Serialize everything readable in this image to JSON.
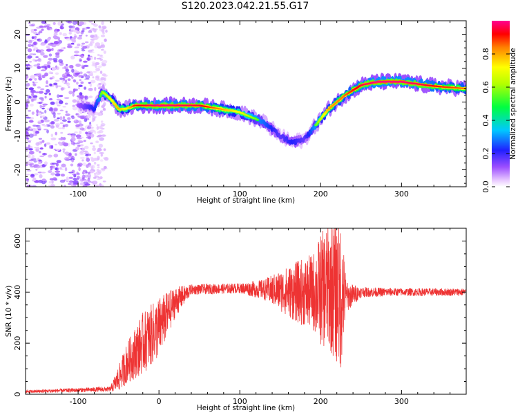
{
  "figure": {
    "title": "S120.2023.042.21.55.G17"
  },
  "chart_data": [
    {
      "type": "heatmap",
      "title": "S120.2023.042.21.55.G17",
      "xlabel": "Height of straight line (km)",
      "ylabel": "Frequency (Hz)",
      "xlim": [
        -165,
        380
      ],
      "ylim": [
        -25,
        24
      ],
      "x_ticks": [
        -100,
        0,
        100,
        200,
        300
      ],
      "y_ticks": [
        -20,
        -10,
        0,
        10,
        20
      ],
      "colorbar": {
        "label": "Normalized spectral amplitude",
        "range": [
          0.0,
          1.0
        ],
        "ticks": [
          "0.0",
          "0.2",
          "0.4",
          "0.6",
          "0.8"
        ],
        "colormap": "rainbow (white-purple-blue-cyan-green-yellow-red-magenta)"
      },
      "ridge": {
        "x": [
          -100,
          -80,
          -70,
          -60,
          -50,
          -40,
          -30,
          0,
          50,
          100,
          130,
          150,
          165,
          180,
          190,
          210,
          230,
          250,
          270,
          300,
          330,
          350,
          380
        ],
        "y": [
          -1,
          -2,
          3,
          1,
          -2,
          -2,
          -1,
          -1,
          -1,
          -3,
          -6,
          -10,
          -12,
          -11,
          -8,
          -2,
          2,
          5,
          6,
          6,
          5,
          4.5,
          4
        ],
        "amplitude": [
          0.2,
          0.4,
          0.6,
          0.7,
          0.8,
          0.7,
          0.9,
          1.0,
          0.95,
          0.7,
          0.5,
          0.3,
          0.4,
          0.3,
          0.5,
          0.8,
          0.85,
          0.95,
          1.0,
          1.0,
          0.95,
          0.9,
          0.85
        ]
      },
      "noise_region_x": [
        -165,
        -85
      ]
    },
    {
      "type": "line",
      "title": "",
      "xlabel": "Height of straight line (km)",
      "ylabel": "SNR (10 * v/v)",
      "xlim": [
        -165,
        380
      ],
      "ylim": [
        0,
        650
      ],
      "x_ticks": [
        -100,
        0,
        100,
        200,
        300
      ],
      "y_ticks": [
        0,
        200,
        400,
        600
      ],
      "color": "#ee3333",
      "envelope": {
        "x": [
          -165,
          -60,
          -50,
          -40,
          -20,
          0,
          20,
          40,
          100,
          130,
          150,
          170,
          190,
          200,
          210,
          225,
          232,
          250,
          300,
          380
        ],
        "mean": [
          10,
          20,
          60,
          120,
          200,
          260,
          360,
          410,
          415,
          410,
          405,
          400,
          400,
          410,
          420,
          390,
          380,
          400,
          400,
          400
        ],
        "spread": [
          6,
          10,
          50,
          80,
          120,
          120,
          60,
          20,
          20,
          40,
          80,
          120,
          150,
          220,
          250,
          300,
          60,
          20,
          15,
          15
        ]
      }
    }
  ]
}
